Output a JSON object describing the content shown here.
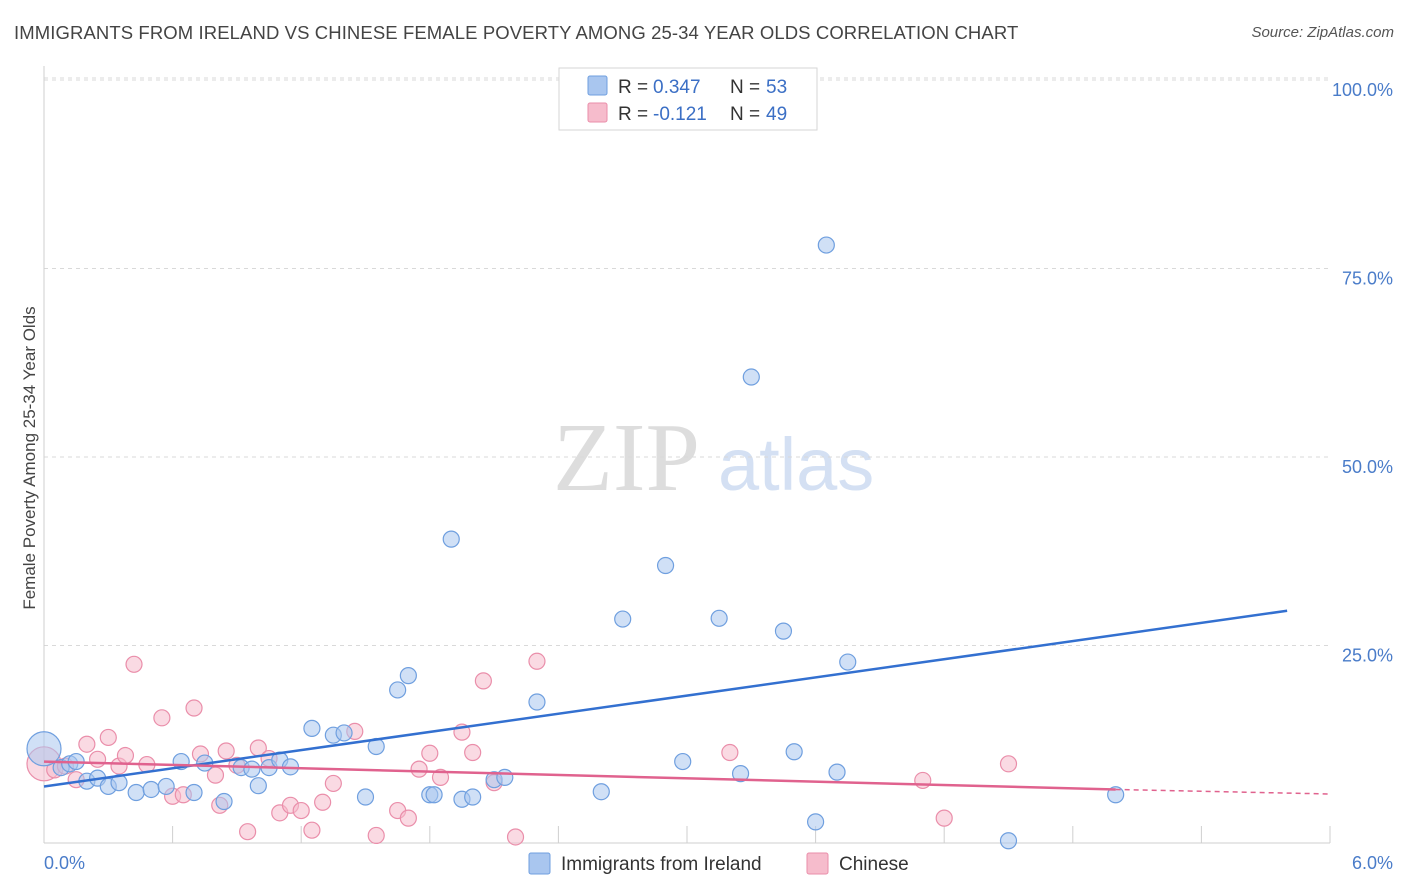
{
  "title": "IMMIGRANTS FROM IRELAND VS CHINESE FEMALE POVERTY AMONG 25-34 YEAR OLDS CORRELATION CHART",
  "source": "Source: ZipAtlas.com",
  "watermark": {
    "zip": "ZIP",
    "atlas": "atlas"
  },
  "colors": {
    "ireland_fill": "#a9c6ef",
    "ireland_stroke": "#6f9fdf",
    "ireland_line": "#3370d0",
    "chinese_fill": "#f6bccc",
    "chinese_stroke": "#ea8eaa",
    "chinese_line": "#e0628e",
    "tick_label": "#4a7cc9",
    "grid": "#d9d9d9"
  },
  "legend": {
    "rows": [
      {
        "r_label": "R =",
        "r_value": "0.347",
        "n_label": "N =",
        "n_value": "53"
      },
      {
        "r_label": "R =",
        "r_value": "-0.121",
        "n_label": "N =",
        "n_value": "49"
      }
    ]
  },
  "chart_data": {
    "type": "scatter",
    "title": "IMMIGRANTS FROM IRELAND VS CHINESE FEMALE POVERTY AMONG 25-34 YEAR OLDS CORRELATION CHART",
    "xlabel": "",
    "ylabel": "Female Poverty Among 25-34 Year Olds",
    "xlim": [
      0,
      6
    ],
    "ylim": [
      0,
      100
    ],
    "x_tick_labels": [
      "0.0%",
      "6.0%"
    ],
    "y_tick_labels": [
      "100.0%",
      "75.0%",
      "50.0%",
      "25.0%"
    ],
    "y_ticks": [
      100,
      75,
      50,
      25
    ],
    "grid": true,
    "legend_position": "top-center",
    "series": [
      {
        "name": "Immigrants from Ireland",
        "r": 0.347,
        "n": 53,
        "trend": {
          "x": [
            0,
            5.8
          ],
          "y": [
            7.5,
            30.8
          ]
        },
        "points": [
          {
            "x": 0.0,
            "y": 12.5,
            "big": true
          },
          {
            "x": 0.08,
            "y": 10.0
          },
          {
            "x": 0.12,
            "y": 10.5
          },
          {
            "x": 0.15,
            "y": 10.8
          },
          {
            "x": 0.2,
            "y": 8.2
          },
          {
            "x": 0.25,
            "y": 8.6
          },
          {
            "x": 0.3,
            "y": 7.5
          },
          {
            "x": 0.35,
            "y": 8.0
          },
          {
            "x": 0.43,
            "y": 6.7
          },
          {
            "x": 0.5,
            "y": 7.1
          },
          {
            "x": 0.57,
            "y": 7.5
          },
          {
            "x": 0.64,
            "y": 10.8
          },
          {
            "x": 0.7,
            "y": 6.7
          },
          {
            "x": 0.75,
            "y": 10.6
          },
          {
            "x": 0.84,
            "y": 5.5
          },
          {
            "x": 0.92,
            "y": 10.0
          },
          {
            "x": 0.97,
            "y": 9.8
          },
          {
            "x": 1.0,
            "y": 7.6
          },
          {
            "x": 1.05,
            "y": 10.0
          },
          {
            "x": 1.1,
            "y": 11.0
          },
          {
            "x": 1.15,
            "y": 10.1
          },
          {
            "x": 1.25,
            "y": 15.2
          },
          {
            "x": 1.35,
            "y": 14.3
          },
          {
            "x": 1.4,
            "y": 14.6
          },
          {
            "x": 1.5,
            "y": 6.1
          },
          {
            "x": 1.55,
            "y": 12.8
          },
          {
            "x": 1.65,
            "y": 20.3
          },
          {
            "x": 1.7,
            "y": 22.2
          },
          {
            "x": 1.8,
            "y": 6.4
          },
          {
            "x": 1.82,
            "y": 6.4
          },
          {
            "x": 1.9,
            "y": 40.3
          },
          {
            "x": 1.95,
            "y": 5.8
          },
          {
            "x": 2.0,
            "y": 6.1
          },
          {
            "x": 2.1,
            "y": 8.4
          },
          {
            "x": 2.15,
            "y": 8.7
          },
          {
            "x": 2.3,
            "y": 18.7
          },
          {
            "x": 2.6,
            "y": 6.8
          },
          {
            "x": 2.7,
            "y": 29.7
          },
          {
            "x": 2.9,
            "y": 36.8
          },
          {
            "x": 2.98,
            "y": 10.8
          },
          {
            "x": 3.15,
            "y": 29.8
          },
          {
            "x": 3.25,
            "y": 9.2
          },
          {
            "x": 3.3,
            "y": 61.8
          },
          {
            "x": 3.45,
            "y": 28.1
          },
          {
            "x": 3.5,
            "y": 12.1
          },
          {
            "x": 3.6,
            "y": 2.8
          },
          {
            "x": 3.65,
            "y": 79.3
          },
          {
            "x": 3.7,
            "y": 9.4
          },
          {
            "x": 3.75,
            "y": 24.0
          },
          {
            "x": 4.5,
            "y": 0.3
          },
          {
            "x": 5.0,
            "y": 6.4
          }
        ]
      },
      {
        "name": "Chinese",
        "r": -0.121,
        "n": 49,
        "trend": {
          "x": [
            0,
            5.0
          ],
          "y": [
            10.8,
            7.1
          ]
        },
        "trend_dashed": {
          "x": [
            5.0,
            6.0
          ],
          "y": [
            7.1,
            6.5
          ]
        },
        "points": [
          {
            "x": 0.0,
            "y": 10.5,
            "big": true
          },
          {
            "x": 0.05,
            "y": 9.7
          },
          {
            "x": 0.1,
            "y": 10.2
          },
          {
            "x": 0.15,
            "y": 8.4
          },
          {
            "x": 0.2,
            "y": 13.1
          },
          {
            "x": 0.25,
            "y": 11.1
          },
          {
            "x": 0.3,
            "y": 14.0
          },
          {
            "x": 0.35,
            "y": 10.2
          },
          {
            "x": 0.38,
            "y": 11.6
          },
          {
            "x": 0.42,
            "y": 23.7
          },
          {
            "x": 0.48,
            "y": 10.4
          },
          {
            "x": 0.55,
            "y": 16.6
          },
          {
            "x": 0.6,
            "y": 6.2
          },
          {
            "x": 0.65,
            "y": 6.4
          },
          {
            "x": 0.7,
            "y": 17.9
          },
          {
            "x": 0.73,
            "y": 11.8
          },
          {
            "x": 0.8,
            "y": 9.0
          },
          {
            "x": 0.82,
            "y": 5.0
          },
          {
            "x": 0.85,
            "y": 12.2
          },
          {
            "x": 0.9,
            "y": 10.3
          },
          {
            "x": 0.95,
            "y": 1.5
          },
          {
            "x": 1.0,
            "y": 12.6
          },
          {
            "x": 1.05,
            "y": 11.2
          },
          {
            "x": 1.1,
            "y": 4.0
          },
          {
            "x": 1.15,
            "y": 5.0
          },
          {
            "x": 1.2,
            "y": 4.3
          },
          {
            "x": 1.25,
            "y": 1.7
          },
          {
            "x": 1.3,
            "y": 5.4
          },
          {
            "x": 1.35,
            "y": 7.9
          },
          {
            "x": 1.45,
            "y": 14.8
          },
          {
            "x": 1.55,
            "y": 1.0
          },
          {
            "x": 1.65,
            "y": 4.3
          },
          {
            "x": 1.7,
            "y": 3.3
          },
          {
            "x": 1.75,
            "y": 9.8
          },
          {
            "x": 1.8,
            "y": 11.9
          },
          {
            "x": 1.85,
            "y": 8.7
          },
          {
            "x": 1.95,
            "y": 14.7
          },
          {
            "x": 2.0,
            "y": 12.0
          },
          {
            "x": 2.05,
            "y": 21.5
          },
          {
            "x": 2.1,
            "y": 8.0
          },
          {
            "x": 2.2,
            "y": 0.8
          },
          {
            "x": 2.3,
            "y": 24.1
          },
          {
            "x": 3.2,
            "y": 12.0
          },
          {
            "x": 4.1,
            "y": 8.3
          },
          {
            "x": 4.2,
            "y": 3.3
          },
          {
            "x": 4.5,
            "y": 10.5
          }
        ]
      }
    ]
  }
}
